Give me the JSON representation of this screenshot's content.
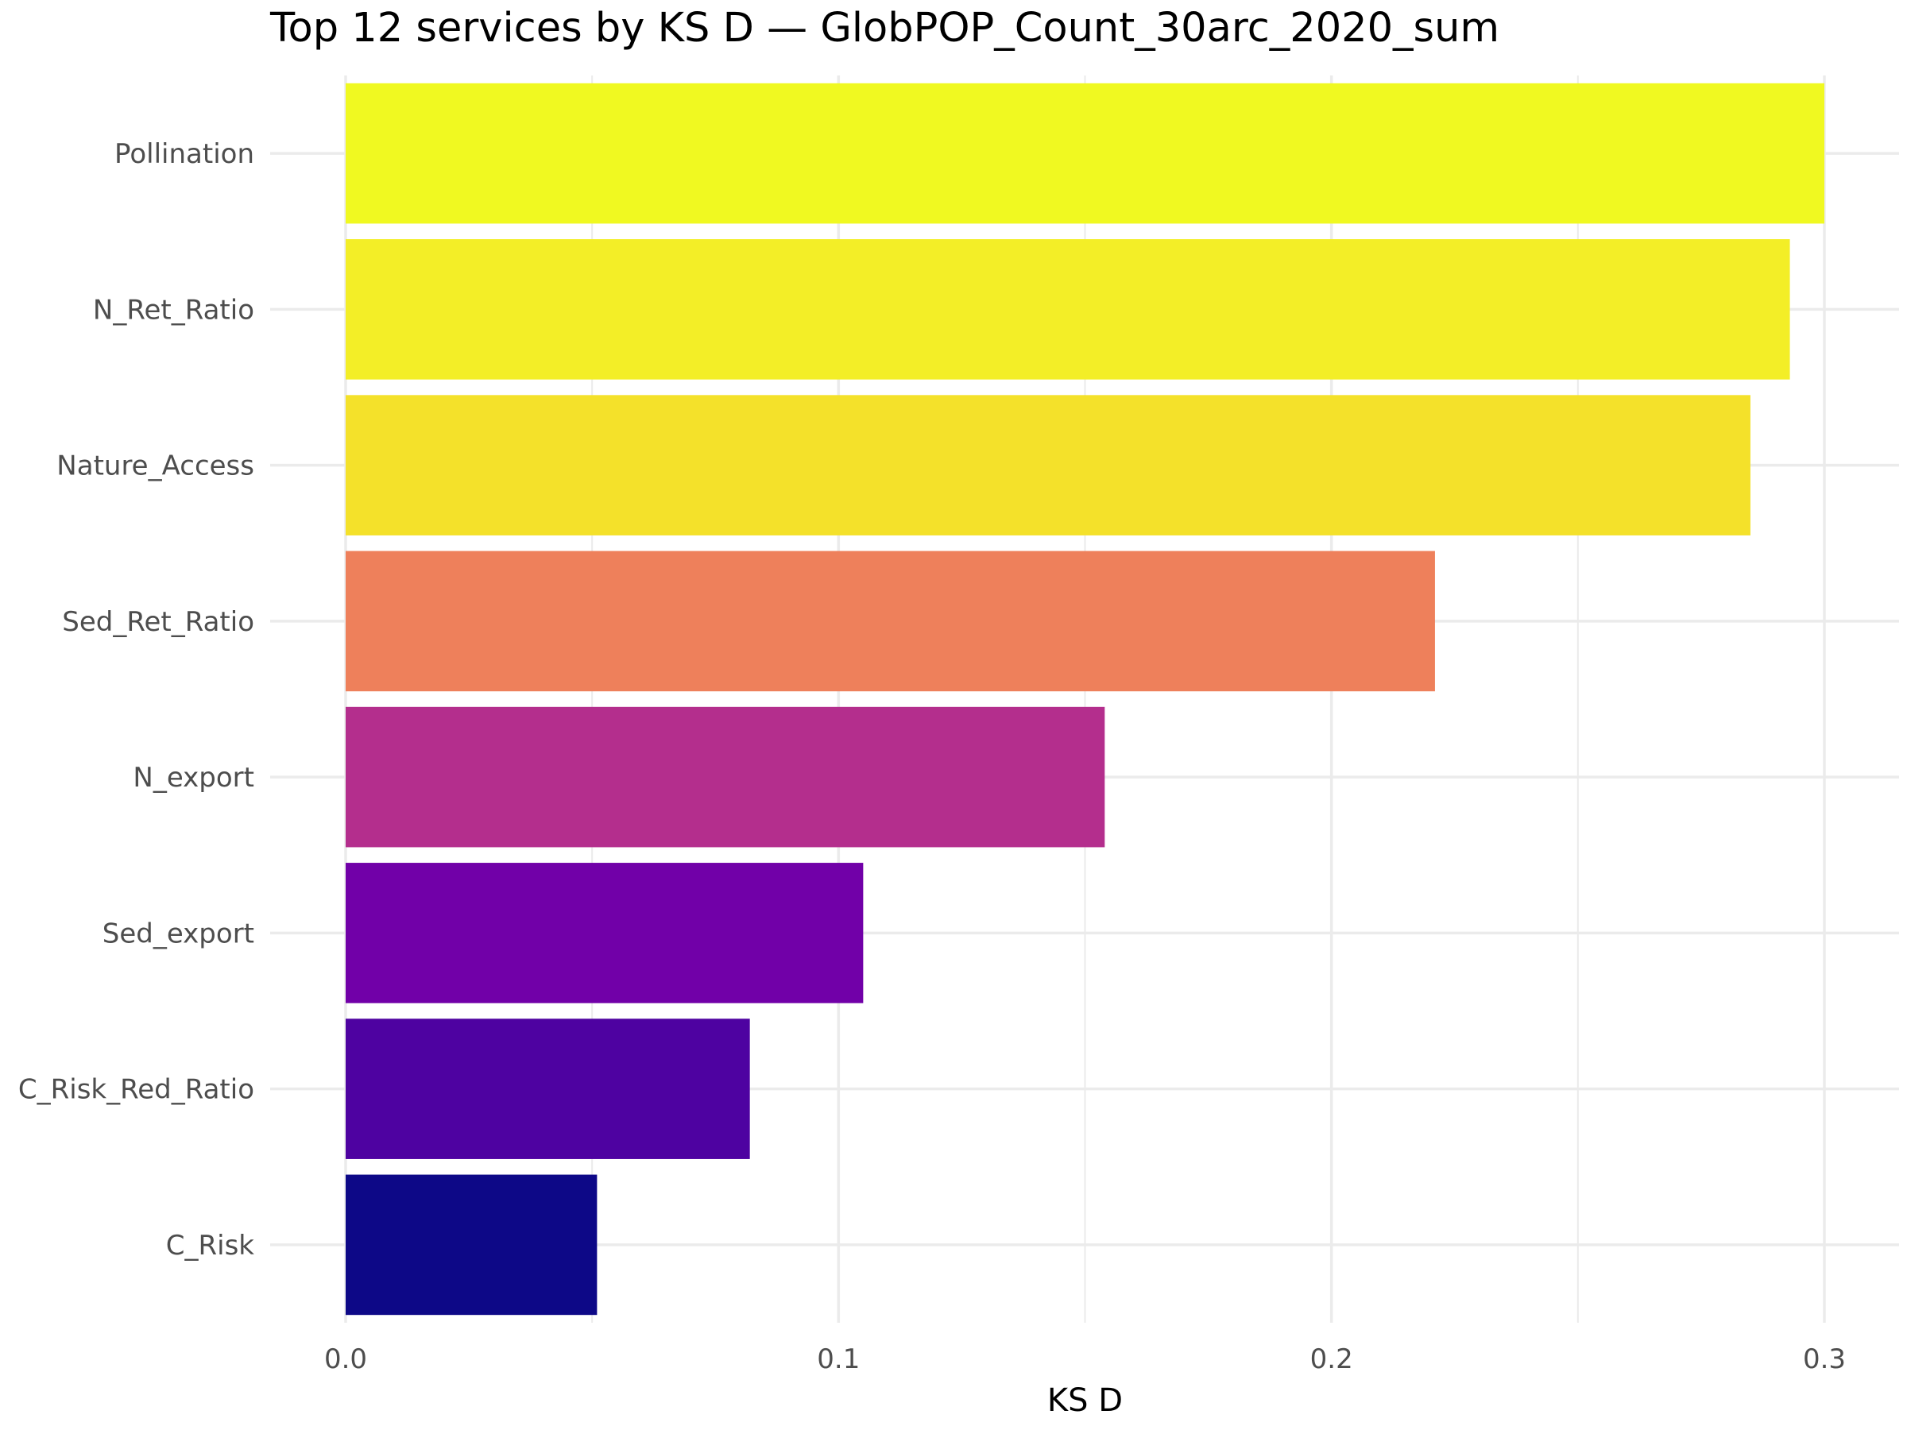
{
  "chart_data": {
    "type": "bar",
    "orientation": "horizontal",
    "title": "Top 12 services by KS D — GlobPOP_Count_30arc_2020_sum",
    "xlabel": "KS D",
    "ylabel": "",
    "xlim": [
      0,
      0.3
    ],
    "xticks": [
      {
        "value": 0.0,
        "label": "0.0"
      },
      {
        "value": 0.1,
        "label": "0.1"
      },
      {
        "value": 0.2,
        "label": "0.2"
      },
      {
        "value": 0.3,
        "label": "0.3"
      }
    ],
    "grid": true,
    "legend": "none",
    "categories": [
      "Pollination",
      "N_Ret_Ratio",
      "Nature_Access",
      "Sed_Ret_Ratio",
      "N_export",
      "Sed_export",
      "C_Risk_Red_Ratio",
      "C_Risk"
    ],
    "values": [
      0.3,
      0.293,
      0.285,
      0.221,
      0.154,
      0.105,
      0.082,
      0.051
    ],
    "colors": [
      "#f0f921",
      "#f3ee27",
      "#f4e12a",
      "#ee805b",
      "#b42e8d",
      "#7100a8",
      "#4e02a1",
      "#0d0887"
    ]
  }
}
